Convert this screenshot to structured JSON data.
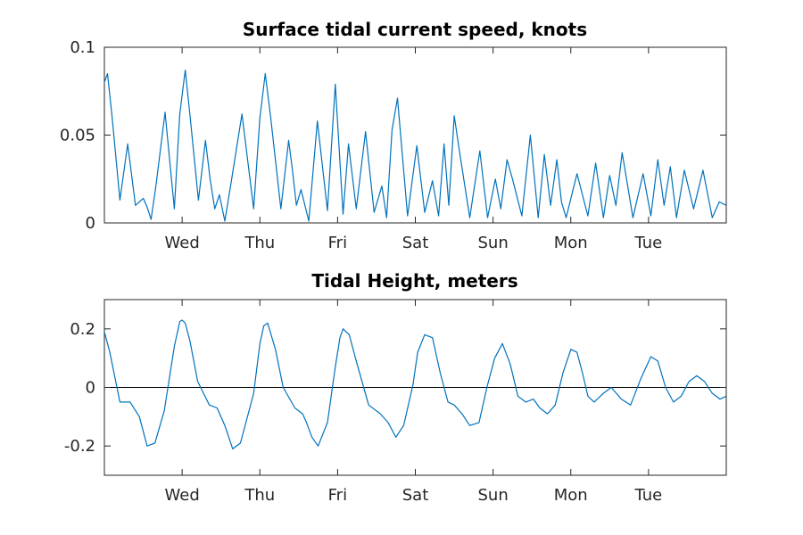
{
  "colors": {
    "series": "#0072BD",
    "axis": "#262626",
    "background": "#ffffff"
  },
  "chart_data": [
    {
      "type": "line",
      "title": "Surface tidal current speed, knots",
      "xlabel": "",
      "ylabel": "",
      "xlim": [
        0,
        8
      ],
      "ylim": [
        0,
        0.1
      ],
      "x_ticks": [
        1,
        2,
        3,
        4,
        5,
        6,
        7
      ],
      "x_tick_labels": [
        "Wed",
        "Thu",
        "Fri",
        "Sat",
        "Sun",
        "Mon",
        "Tue"
      ],
      "y_ticks": [
        0,
        0.05,
        0.1
      ],
      "y_tick_labels": [
        "0",
        "0.05",
        "0.1"
      ],
      "grid": false,
      "series": [
        {
          "x": [
            0,
            0.04,
            0.1,
            0.2,
            0.3,
            0.4,
            0.5,
            0.55,
            0.6,
            0.66,
            0.78,
            0.9,
            0.97,
            1.04,
            1.1,
            1.21,
            1.3,
            1.36,
            1.42,
            1.48,
            1.55,
            1.62,
            1.77,
            1.92,
            2.0,
            2.07,
            2.14,
            2.27,
            2.37,
            2.42,
            2.47,
            2.53,
            2.63,
            2.74,
            2.87,
            2.97,
            3.07,
            3.14,
            3.24,
            3.36,
            3.47,
            3.57,
            3.63,
            3.7,
            3.77,
            3.9,
            4.02,
            4.12,
            4.22,
            4.3,
            4.37,
            4.43,
            4.5,
            4.57,
            4.7,
            4.83,
            4.93,
            5.03,
            5.1,
            5.18,
            5.25,
            5.37,
            5.48,
            5.58,
            5.66,
            5.74,
            5.82,
            5.88,
            5.94,
            6.08,
            6.22,
            6.32,
            6.42,
            6.5,
            6.58,
            6.66,
            6.8,
            6.93,
            7.03,
            7.12,
            7.2,
            7.28,
            7.36,
            7.46,
            7.58,
            7.7,
            7.82,
            7.91,
            8.0
          ],
          "y": [
            0.08,
            0.085,
            0.06,
            0.013,
            0.045,
            0.01,
            0.014,
            0.009,
            0.002,
            0.02,
            0.063,
            0.008,
            0.062,
            0.087,
            0.062,
            0.013,
            0.047,
            0.025,
            0.008,
            0.016,
            0.001,
            0.02,
            0.062,
            0.008,
            0.06,
            0.085,
            0.06,
            0.008,
            0.047,
            0.03,
            0.01,
            0.019,
            0.001,
            0.058,
            0.007,
            0.079,
            0.005,
            0.045,
            0.008,
            0.052,
            0.006,
            0.021,
            0.003,
            0.053,
            0.071,
            0.004,
            0.044,
            0.006,
            0.024,
            0.004,
            0.045,
            0.01,
            0.061,
            0.04,
            0.003,
            0.041,
            0.003,
            0.025,
            0.008,
            0.036,
            0.025,
            0.004,
            0.05,
            0.003,
            0.039,
            0.01,
            0.036,
            0.012,
            0.003,
            0.028,
            0.004,
            0.034,
            0.003,
            0.027,
            0.01,
            0.04,
            0.003,
            0.028,
            0.004,
            0.036,
            0.01,
            0.032,
            0.003,
            0.03,
            0.008,
            0.03,
            0.003,
            0.012,
            0.01
          ]
        }
      ]
    },
    {
      "type": "line",
      "title": "Tidal Height, meters",
      "xlabel": "",
      "ylabel": "",
      "xlim": [
        0,
        8
      ],
      "ylim": [
        -0.3,
        0.3
      ],
      "x_ticks": [
        1,
        2,
        3,
        4,
        5,
        6,
        7
      ],
      "x_tick_labels": [
        "Wed",
        "Thu",
        "Fri",
        "Sat",
        "Sun",
        "Mon",
        "Tue"
      ],
      "y_ticks": [
        -0.2,
        0,
        0.2
      ],
      "y_tick_labels": [
        "-0.2",
        "0",
        "0.2"
      ],
      "zero_line": true,
      "grid": false,
      "series": [
        {
          "x": [
            0,
            0.07,
            0.2,
            0.33,
            0.45,
            0.55,
            0.65,
            0.77,
            0.9,
            0.97,
            1.0,
            1.04,
            1.1,
            1.2,
            1.35,
            1.45,
            1.55,
            1.65,
            1.75,
            1.92,
            2.0,
            2.05,
            2.1,
            2.2,
            2.3,
            2.45,
            2.55,
            2.6,
            2.67,
            2.75,
            2.87,
            2.97,
            3.03,
            3.07,
            3.15,
            3.25,
            3.4,
            3.55,
            3.65,
            3.75,
            3.85,
            3.97,
            4.03,
            4.12,
            4.22,
            4.32,
            4.42,
            4.5,
            4.6,
            4.7,
            4.82,
            4.92,
            5.02,
            5.12,
            5.22,
            5.32,
            5.42,
            5.52,
            5.6,
            5.7,
            5.8,
            5.9,
            6.0,
            6.08,
            6.15,
            6.22,
            6.3,
            6.42,
            6.52,
            6.65,
            6.77,
            6.9,
            7.03,
            7.12,
            7.22,
            7.32,
            7.42,
            7.52,
            7.62,
            7.72,
            7.82,
            7.92,
            8.0
          ],
          "y": [
            0.19,
            0.12,
            -0.05,
            -0.05,
            -0.1,
            -0.2,
            -0.19,
            -0.08,
            0.14,
            0.225,
            0.23,
            0.22,
            0.16,
            0.02,
            -0.06,
            -0.07,
            -0.13,
            -0.21,
            -0.19,
            -0.02,
            0.15,
            0.21,
            0.22,
            0.13,
            0.0,
            -0.07,
            -0.09,
            -0.12,
            -0.17,
            -0.2,
            -0.12,
            0.07,
            0.17,
            0.2,
            0.18,
            0.08,
            -0.06,
            -0.09,
            -0.12,
            -0.17,
            -0.13,
            0.01,
            0.12,
            0.18,
            0.17,
            0.05,
            -0.05,
            -0.06,
            -0.09,
            -0.13,
            -0.12,
            0.0,
            0.1,
            0.15,
            0.08,
            -0.03,
            -0.05,
            -0.04,
            -0.07,
            -0.09,
            -0.06,
            0.05,
            0.13,
            0.12,
            0.05,
            -0.03,
            -0.05,
            -0.02,
            0.0,
            -0.04,
            -0.06,
            0.03,
            0.105,
            0.09,
            0.0,
            -0.05,
            -0.03,
            0.02,
            0.04,
            0.02,
            -0.02,
            -0.04,
            -0.03
          ]
        }
      ]
    }
  ]
}
